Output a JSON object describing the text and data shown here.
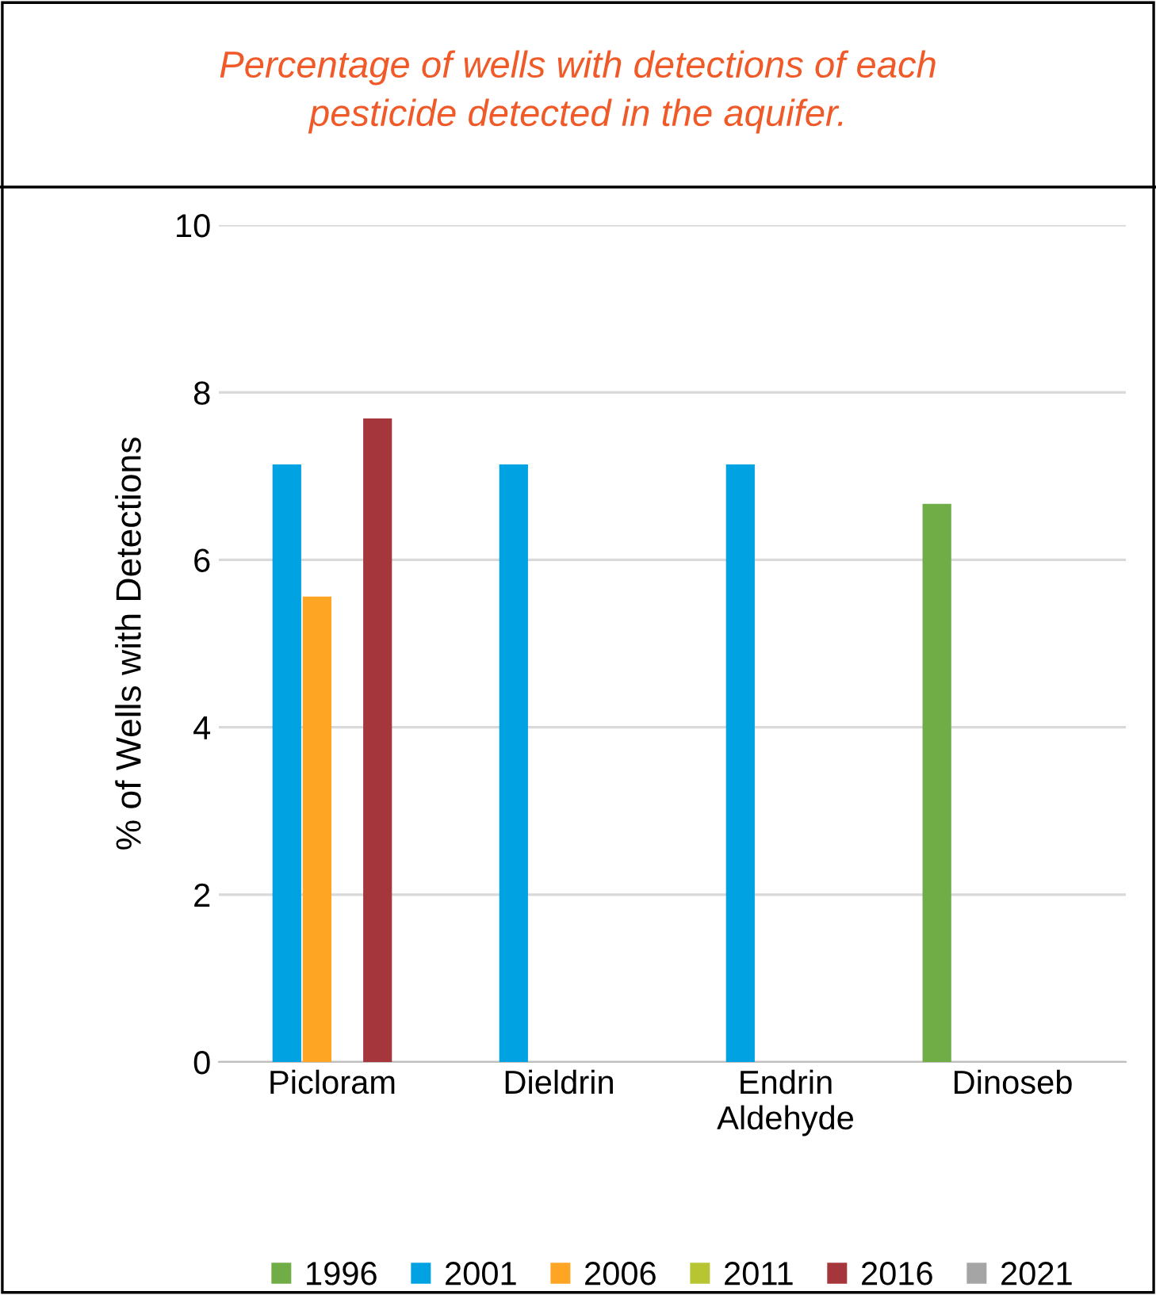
{
  "chart_data": {
    "type": "bar",
    "title": "Percentage of wells with detections of each\npesticide detected in the aquifer.",
    "ylabel": "% of Wells with Detections",
    "categories": [
      "Picloram",
      "Dieldrin",
      "Endrin\nAldehyde",
      "Dinoseb"
    ],
    "series": [
      {
        "name": "1996",
        "color": "#70ad47",
        "values": [
          0,
          0,
          0,
          6.67
        ]
      },
      {
        "name": "2001",
        "color": "#00a2e2",
        "values": [
          7.14,
          7.14,
          7.14,
          0
        ]
      },
      {
        "name": "2006",
        "color": "#ffa524",
        "values": [
          5.56,
          0,
          0,
          0
        ]
      },
      {
        "name": "2011",
        "color": "#b6c531",
        "values": [
          0,
          0,
          0,
          0
        ]
      },
      {
        "name": "2016",
        "color": "#a5363b",
        "values": [
          7.69,
          0,
          0,
          0
        ]
      },
      {
        "name": "2021",
        "color": "#a5a5a5",
        "values": [
          0,
          0,
          0,
          0
        ]
      }
    ],
    "ylim": [
      0,
      10
    ],
    "yticks": [
      0,
      2,
      4,
      6,
      8,
      10
    ],
    "grid": "y",
    "legend": "bottom"
  }
}
